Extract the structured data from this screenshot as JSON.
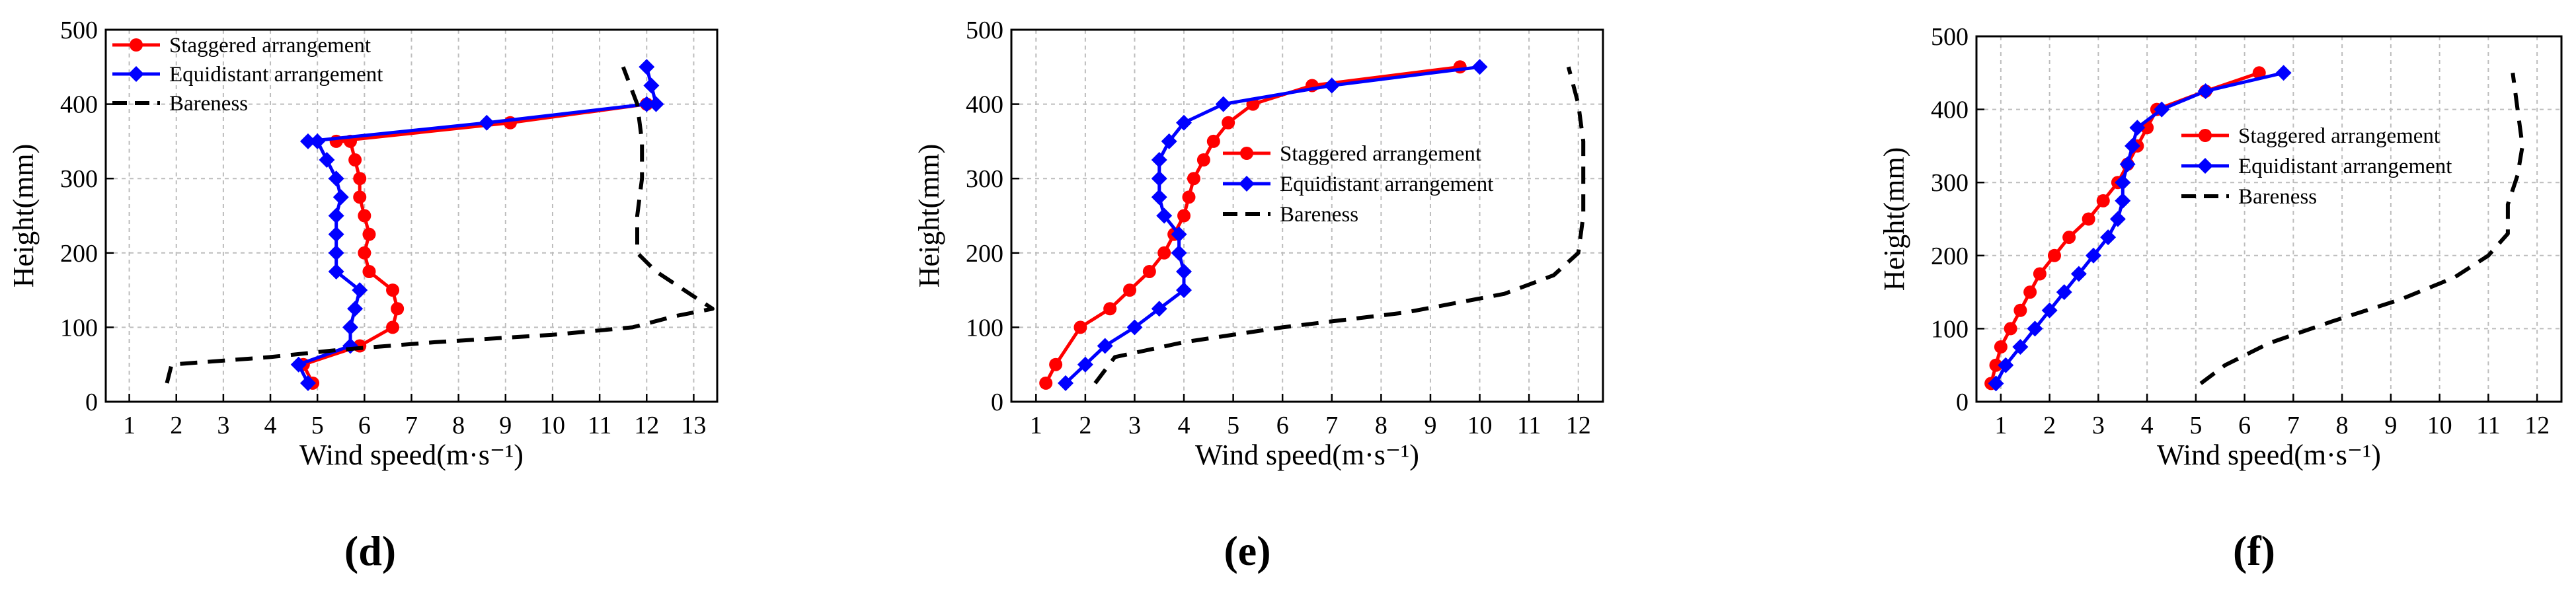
{
  "chart_data": [
    {
      "type": "line",
      "panel_label": "(d)",
      "xlabel": "Wind speed(m·s⁻¹)",
      "ylabel": "Height(mm)",
      "xlim": [
        0.5,
        13.5
      ],
      "ylim": [
        0,
        500
      ],
      "xticks": [
        "1",
        "2",
        "3",
        "4",
        "5",
        "6",
        "7",
        "8",
        "9",
        "10",
        "11",
        "12",
        "13"
      ],
      "yticks": [
        "0",
        "100",
        "200",
        "300",
        "400",
        "500"
      ],
      "grid": true,
      "legend_position": "top-left",
      "series": [
        {
          "name": "Staggered arrangement",
          "color": "#ff0000",
          "marker": "circle",
          "x": [
            4.9,
            4.7,
            5.9,
            6.6,
            6.7,
            6.6,
            6.1,
            6.0,
            6.1,
            6.0,
            5.9,
            5.9,
            5.8,
            5.7,
            5.4,
            9.1,
            12.0
          ],
          "y": [
            25,
            50,
            75,
            100,
            125,
            150,
            175,
            200,
            225,
            250,
            275,
            300,
            325,
            350,
            350,
            375,
            400
          ]
        },
        {
          "name": "Equidistant arrangement",
          "color": "#0000ff",
          "marker": "diamond",
          "x": [
            4.8,
            4.6,
            5.7,
            5.7,
            5.8,
            5.9,
            5.4,
            5.4,
            5.4,
            5.4,
            5.5,
            5.4,
            5.2,
            5.0,
            4.8,
            8.6,
            12.0,
            12.2,
            12.1,
            12.0
          ],
          "y": [
            25,
            50,
            75,
            100,
            125,
            150,
            175,
            200,
            225,
            250,
            275,
            300,
            325,
            350,
            350,
            375,
            400,
            400,
            425,
            450
          ]
        },
        {
          "name": "Bareness",
          "color": "#000000",
          "marker": "none",
          "dash": "dashed",
          "x": [
            1.8,
            1.9,
            4.0,
            5.5,
            7.5,
            10.0,
            11.7,
            12.6,
            13.4,
            12.8,
            12.2,
            11.8,
            11.8,
            11.9,
            11.9,
            11.8,
            11.5
          ],
          "y": [
            25,
            50,
            60,
            70,
            80,
            90,
            100,
            115,
            125,
            150,
            175,
            200,
            250,
            300,
            350,
            400,
            450
          ]
        }
      ]
    },
    {
      "type": "line",
      "panel_label": "(e)",
      "xlabel": "Wind speed(m·s⁻¹)",
      "ylabel": "Height(mm)",
      "xlim": [
        0.5,
        12.5
      ],
      "ylim": [
        0,
        500
      ],
      "xticks": [
        "1",
        "2",
        "3",
        "4",
        "5",
        "6",
        "7",
        "8",
        "9",
        "10",
        "11",
        "12"
      ],
      "yticks": [
        "0",
        "100",
        "200",
        "300",
        "400",
        "500"
      ],
      "grid": true,
      "legend_position": "center-right",
      "series": [
        {
          "name": "Staggered arrangement",
          "color": "#ff0000",
          "marker": "circle",
          "x": [
            1.2,
            1.4,
            1.9,
            2.5,
            2.9,
            3.3,
            3.6,
            3.8,
            4.0,
            4.1,
            4.2,
            4.4,
            4.6,
            4.9,
            5.4,
            6.6,
            9.6
          ],
          "y": [
            25,
            50,
            100,
            125,
            150,
            175,
            200,
            225,
            250,
            275,
            300,
            325,
            350,
            375,
            400,
            425,
            450
          ]
        },
        {
          "name": "Equidistant arrangement",
          "color": "#0000ff",
          "marker": "diamond",
          "x": [
            1.6,
            2.0,
            2.4,
            3.0,
            3.5,
            4.0,
            4.0,
            3.9,
            3.9,
            3.6,
            3.5,
            3.5,
            3.5,
            3.7,
            4.0,
            4.8,
            7.0,
            10.0
          ],
          "y": [
            25,
            50,
            75,
            100,
            125,
            150,
            175,
            200,
            225,
            250,
            275,
            300,
            325,
            350,
            375,
            400,
            425,
            450
          ]
        },
        {
          "name": "Bareness",
          "color": "#000000",
          "marker": "none",
          "dash": "dashed",
          "x": [
            2.2,
            2.6,
            4.0,
            6.0,
            8.5,
            10.5,
            11.5,
            12.0,
            12.1,
            12.1,
            12.1,
            12.0,
            11.8
          ],
          "y": [
            25,
            60,
            80,
            100,
            120,
            145,
            170,
            200,
            250,
            300,
            350,
            400,
            450
          ]
        }
      ]
    },
    {
      "type": "line",
      "panel_label": "(f)",
      "xlabel": "Wind speed(m·s⁻¹)",
      "ylabel": "Height(mm)",
      "xlim": [
        0.5,
        12.5
      ],
      "ylim": [
        0,
        500
      ],
      "xticks": [
        "1",
        "2",
        "3",
        "4",
        "5",
        "6",
        "7",
        "8",
        "9",
        "10",
        "11",
        "12"
      ],
      "yticks": [
        "0",
        "100",
        "200",
        "300",
        "400",
        "500"
      ],
      "grid": true,
      "legend_position": "center-right",
      "series": [
        {
          "name": "Staggered arrangement",
          "color": "#ff0000",
          "marker": "circle",
          "x": [
            0.8,
            0.9,
            1.0,
            1.2,
            1.4,
            1.6,
            1.8,
            2.1,
            2.4,
            2.8,
            3.1,
            3.4,
            3.6,
            3.8,
            4.0,
            4.2,
            5.2,
            6.3
          ],
          "y": [
            25,
            50,
            75,
            100,
            125,
            150,
            175,
            200,
            225,
            250,
            275,
            300,
            325,
            350,
            375,
            400,
            425,
            450
          ]
        },
        {
          "name": "Equidistant arrangement",
          "color": "#0000ff",
          "marker": "diamond",
          "x": [
            0.9,
            1.1,
            1.4,
            1.7,
            2.0,
            2.3,
            2.6,
            2.9,
            3.2,
            3.4,
            3.5,
            3.5,
            3.6,
            3.7,
            3.8,
            4.3,
            5.2,
            6.8
          ],
          "y": [
            25,
            50,
            75,
            100,
            125,
            150,
            175,
            200,
            225,
            250,
            275,
            300,
            325,
            350,
            375,
            400,
            425,
            450
          ]
        },
        {
          "name": "Bareness",
          "color": "#000000",
          "marker": "none",
          "dash": "dashed",
          "x": [
            5.1,
            5.6,
            6.5,
            7.8,
            9.2,
            10.3,
            11.0,
            11.4,
            11.4,
            11.6,
            11.7,
            11.6,
            11.5
          ],
          "y": [
            25,
            50,
            80,
            110,
            140,
            170,
            200,
            230,
            270,
            310,
            350,
            400,
            450
          ]
        }
      ]
    }
  ]
}
